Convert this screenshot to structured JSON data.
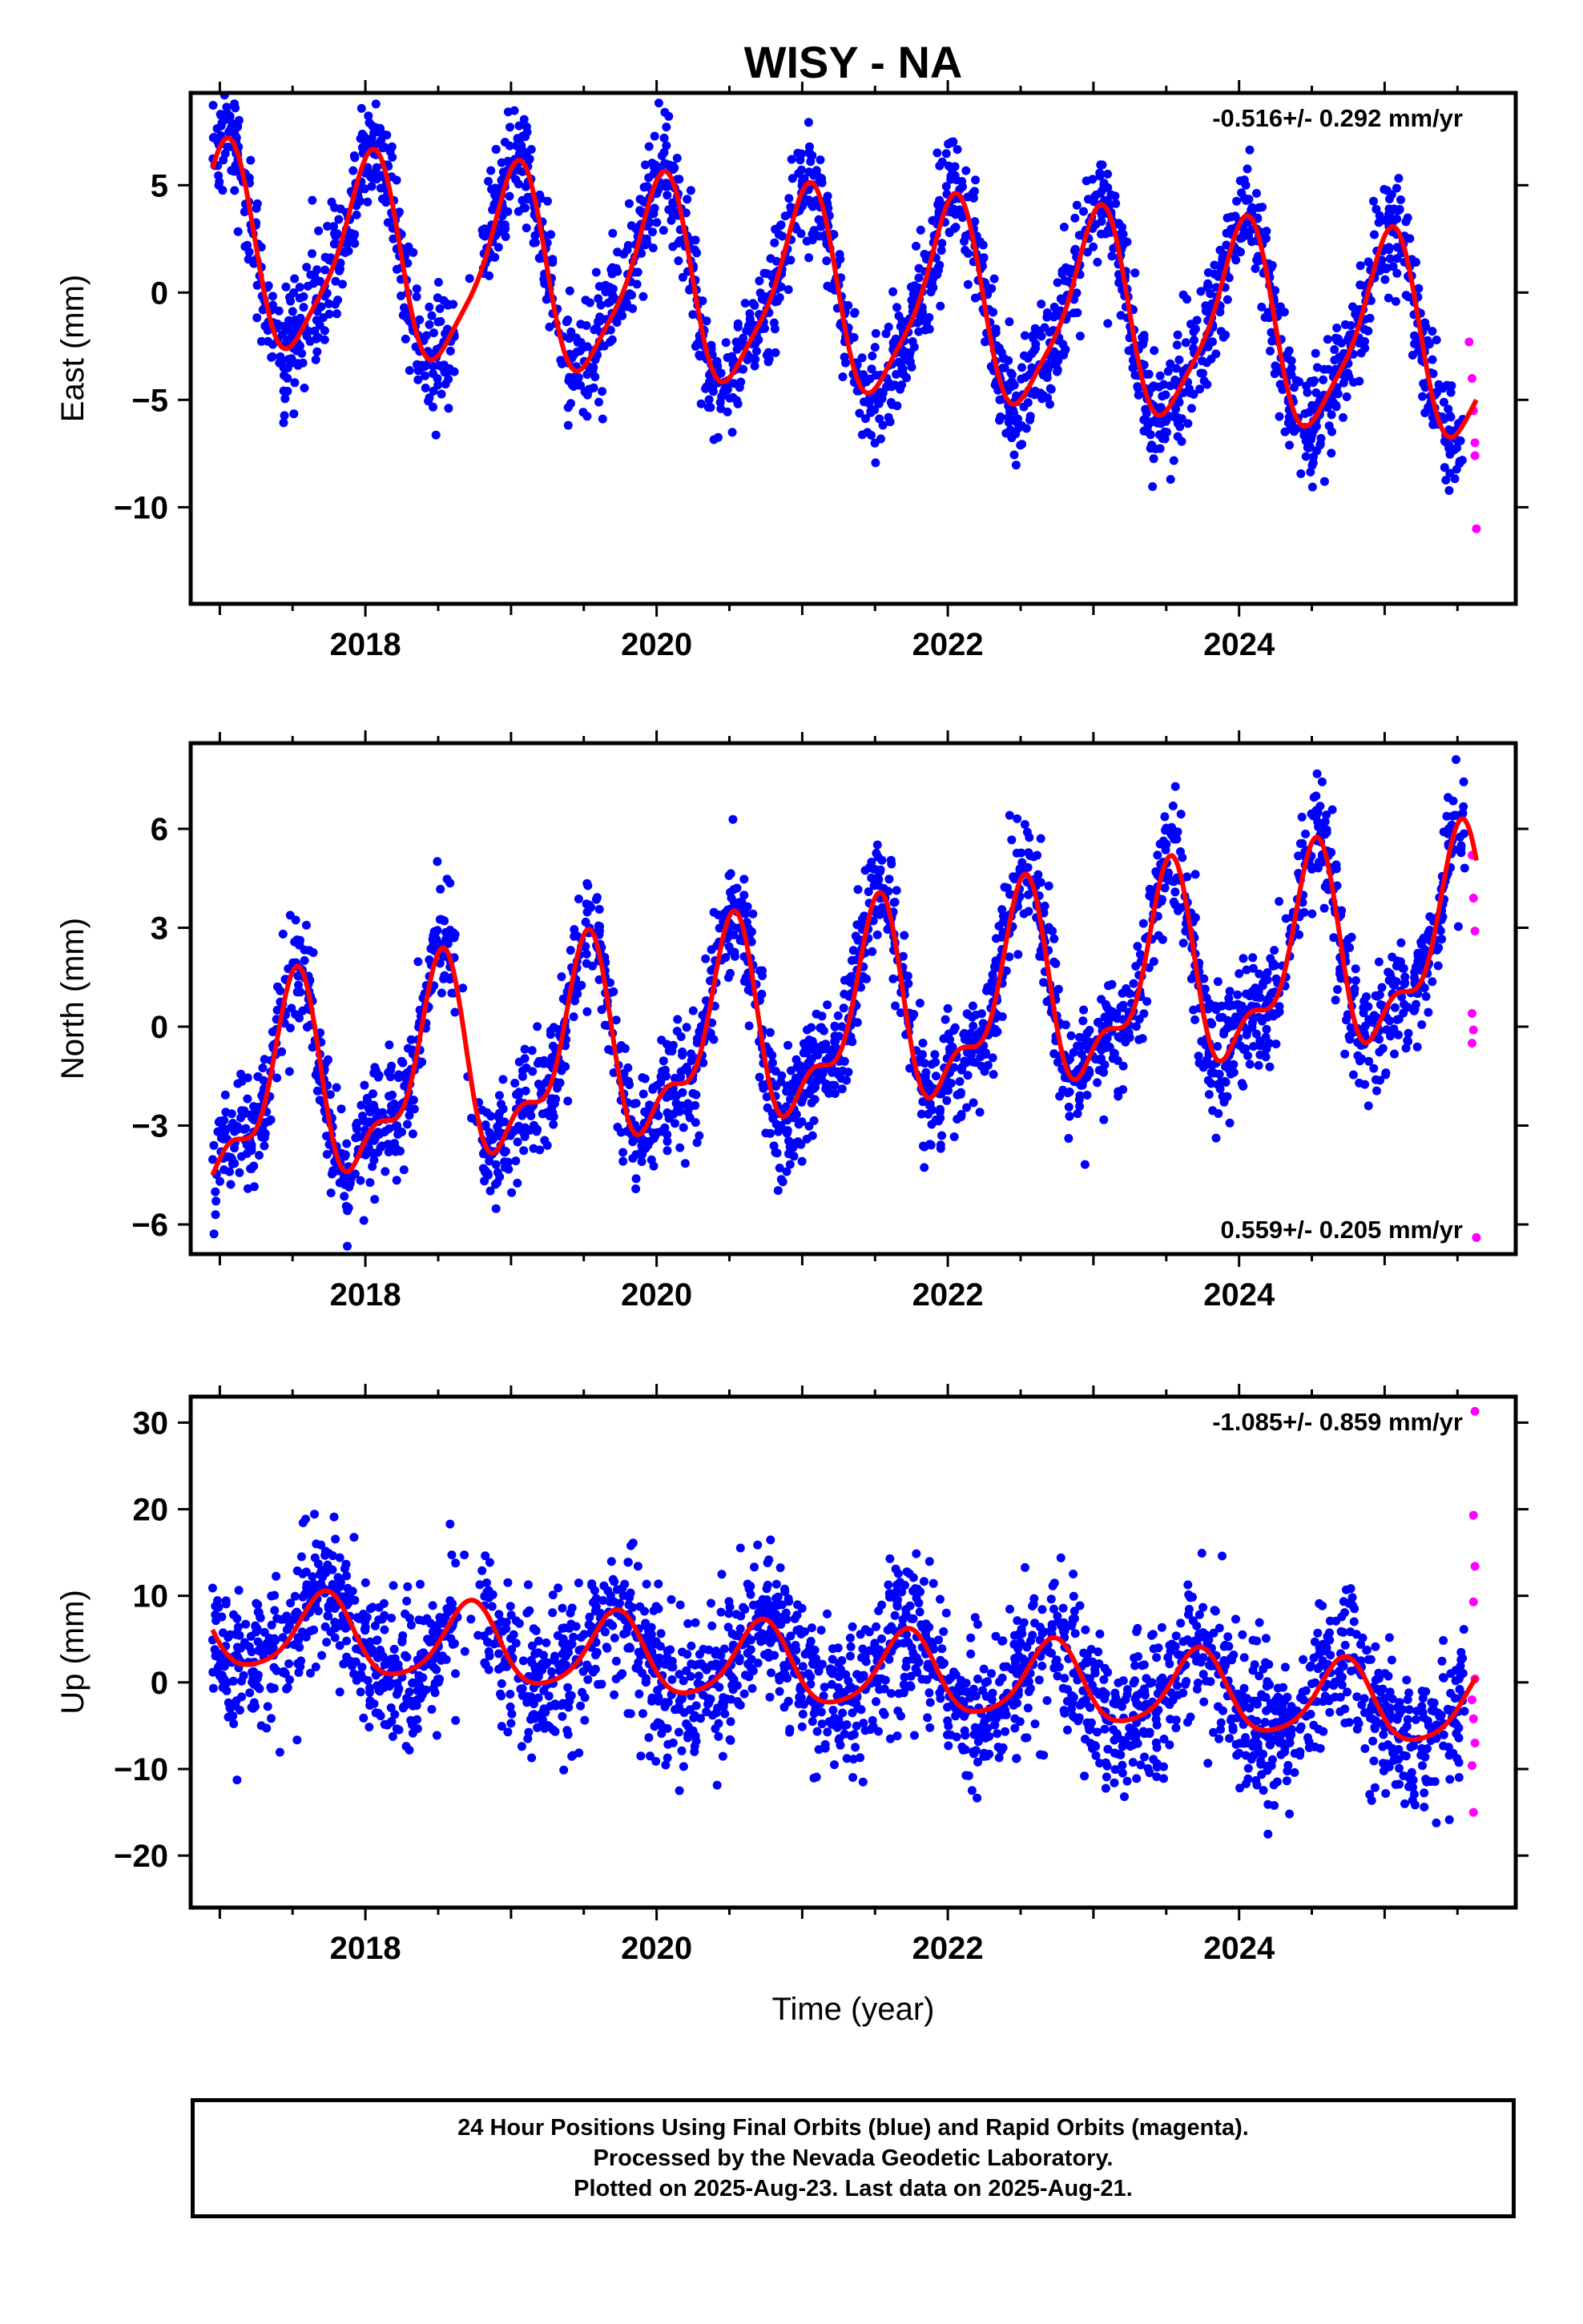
{
  "title": "WISY - NA",
  "xlabel": "Time (year)",
  "colors": {
    "final": "#0000ff",
    "rapid": "#ff00ff",
    "model": "#ff0000",
    "axis": "#000000"
  },
  "footer": {
    "line1": "24 Hour Positions Using Final Orbits (blue) and Rapid Orbits (magenta).",
    "line2": "Processed by the Nevada Geodetic Laboratory.",
    "line3": "Plotted on 2025-Aug-23. Last data on 2025-Aug-21."
  },
  "chart_data": [
    {
      "type": "scatter",
      "ylabel": "East (mm)",
      "rate_label": "-0.516+/- 0.292 mm/yr",
      "rate_position": "top-right",
      "xlim": [
        2016.8,
        2025.9
      ],
      "ylim": [
        -14.5,
        9.3
      ],
      "xticks": [
        2018,
        2020,
        2022,
        2024
      ],
      "yticks": [
        -10,
        -5,
        0,
        5
      ],
      "data_range": [
        2016.95,
        2025.55
      ],
      "rapid_range": [
        2025.56,
        2025.63
      ],
      "model": {
        "offset": -0.2,
        "rate": -0.516,
        "ref_year": 2021.25,
        "annual_amp": 4.5,
        "annual_peak": 2021.02,
        "semiannual_amp": 1.0,
        "semiannual_peak": 2021.1
      },
      "scatter_sd": 1.3,
      "series": [
        {
          "name": "Final Orbits (blue)",
          "sample_points": [
            [
              2017.0,
              4.6
            ],
            [
              2017.5,
              -3.4
            ],
            [
              2018.05,
              4.2
            ],
            [
              2018.55,
              -4.0
            ],
            [
              2019.05,
              3.8
            ],
            [
              2019.55,
              -4.5
            ],
            [
              2020.05,
              3.3
            ],
            [
              2020.55,
              -5.0
            ],
            [
              2021.05,
              2.8
            ],
            [
              2021.55,
              -5.4
            ],
            [
              2022.05,
              2.2
            ],
            [
              2022.55,
              -6.0
            ],
            [
              2023.05,
              1.7
            ],
            [
              2023.55,
              -6.4
            ],
            [
              2024.05,
              1.2
            ],
            [
              2024.55,
              -7.0
            ],
            [
              2025.05,
              0.6
            ],
            [
              2025.5,
              -7.4
            ]
          ]
        },
        {
          "name": "Rapid Orbits (magenta)",
          "sample_points": [
            [
              2025.58,
              -2.3
            ],
            [
              2025.6,
              -4.0
            ],
            [
              2025.61,
              -5.5
            ],
            [
              2025.62,
              -7.0
            ],
            [
              2025.62,
              -7.6
            ],
            [
              2025.63,
              -11.0
            ]
          ]
        }
      ]
    },
    {
      "type": "scatter",
      "ylabel": "North (mm)",
      "rate_label": "0.559+/- 0.205 mm/yr",
      "rate_position": "bottom-right",
      "xlim": [
        2016.8,
        2025.9
      ],
      "ylim": [
        -6.9,
        8.6
      ],
      "xticks": [
        2018,
        2020,
        2022,
        2024
      ],
      "yticks": [
        -6,
        -3,
        0,
        3,
        6
      ],
      "data_range": [
        2016.95,
        2025.55
      ],
      "rapid_range": [
        2025.56,
        2025.63
      ],
      "model": {
        "offset": 0.1,
        "rate": 0.559,
        "ref_year": 2021.25,
        "annual_amp": 2.7,
        "annual_peak": 2021.5,
        "semiannual_amp": 1.2,
        "semiannual_peak": 2021.55
      },
      "scatter_sd": 0.9,
      "series": [
        {
          "name": "Final Orbits (blue)",
          "sample_points": [
            [
              2017.0,
              -4.4
            ],
            [
              2017.5,
              1.6
            ],
            [
              2017.85,
              -4.2
            ],
            [
              2018.5,
              2.2
            ],
            [
              2018.85,
              -3.6
            ],
            [
              2019.5,
              2.8
            ],
            [
              2019.85,
              -3.1
            ],
            [
              2020.5,
              3.3
            ],
            [
              2020.85,
              -2.5
            ],
            [
              2021.5,
              3.9
            ],
            [
              2021.85,
              -1.9
            ],
            [
              2022.5,
              4.4
            ],
            [
              2022.85,
              -1.4
            ],
            [
              2023.5,
              5.0
            ],
            [
              2023.85,
              -0.9
            ],
            [
              2024.5,
              5.6
            ],
            [
              2024.85,
              -0.3
            ],
            [
              2025.5,
              6.1
            ]
          ]
        },
        {
          "name": "Rapid Orbits (magenta)",
          "sample_points": [
            [
              2025.6,
              5.2
            ],
            [
              2025.61,
              3.9
            ],
            [
              2025.62,
              2.9
            ],
            [
              2025.6,
              0.4
            ],
            [
              2025.61,
              -0.1
            ],
            [
              2025.6,
              -0.5
            ],
            [
              2025.63,
              -6.4
            ]
          ]
        }
      ]
    },
    {
      "type": "scatter",
      "ylabel": "Up (mm)",
      "rate_label": "-1.085+/- 0.859 mm/yr",
      "rate_position": "top-right",
      "xlim": [
        2016.8,
        2025.9
      ],
      "ylim": [
        -26,
        33
      ],
      "xticks": [
        2018,
        2020,
        2022,
        2024
      ],
      "yticks": [
        -20,
        -10,
        0,
        10,
        20,
        30
      ],
      "data_range": [
        2016.95,
        2025.55
      ],
      "rapid_range": [
        2025.56,
        2025.63
      ],
      "model": {
        "offset": 1.5,
        "rate": -1.085,
        "ref_year": 2021.25,
        "annual_amp": 4.5,
        "annual_peak": 2020.72,
        "semiannual_amp": 0.8,
        "semiannual_peak": 2020.75
      },
      "scatter_sd": 4.2,
      "series": [
        {
          "name": "Final Orbits (blue)",
          "sample_points": [
            [
              2017.0,
              6.0
            ],
            [
              2017.3,
              -1.0
            ],
            [
              2017.7,
              7.8
            ],
            [
              2018.3,
              -2.0
            ],
            [
              2018.7,
              6.8
            ],
            [
              2019.3,
              -3.0
            ],
            [
              2019.7,
              5.5
            ],
            [
              2020.3,
              -4.2
            ],
            [
              2020.7,
              4.5
            ],
            [
              2021.3,
              -5.2
            ],
            [
              2021.7,
              3.5
            ],
            [
              2022.3,
              -6.3
            ],
            [
              2022.7,
              2.3
            ],
            [
              2023.3,
              -7.5
            ],
            [
              2023.7,
              1.3
            ],
            [
              2024.3,
              -8.5
            ],
            [
              2024.7,
              0.0
            ],
            [
              2025.3,
              -9.5
            ]
          ]
        },
        {
          "name": "Rapid Orbits (magenta)",
          "sample_points": [
            [
              2025.62,
              31.3
            ],
            [
              2025.61,
              19.3
            ],
            [
              2025.62,
              13.4
            ],
            [
              2025.61,
              9.3
            ],
            [
              2025.62,
              0.4
            ],
            [
              2025.6,
              -2.0
            ],
            [
              2025.61,
              -4.2
            ],
            [
              2025.62,
              -7.0
            ],
            [
              2025.6,
              -9.6
            ],
            [
              2025.61,
              -15.0
            ]
          ]
        }
      ]
    }
  ]
}
